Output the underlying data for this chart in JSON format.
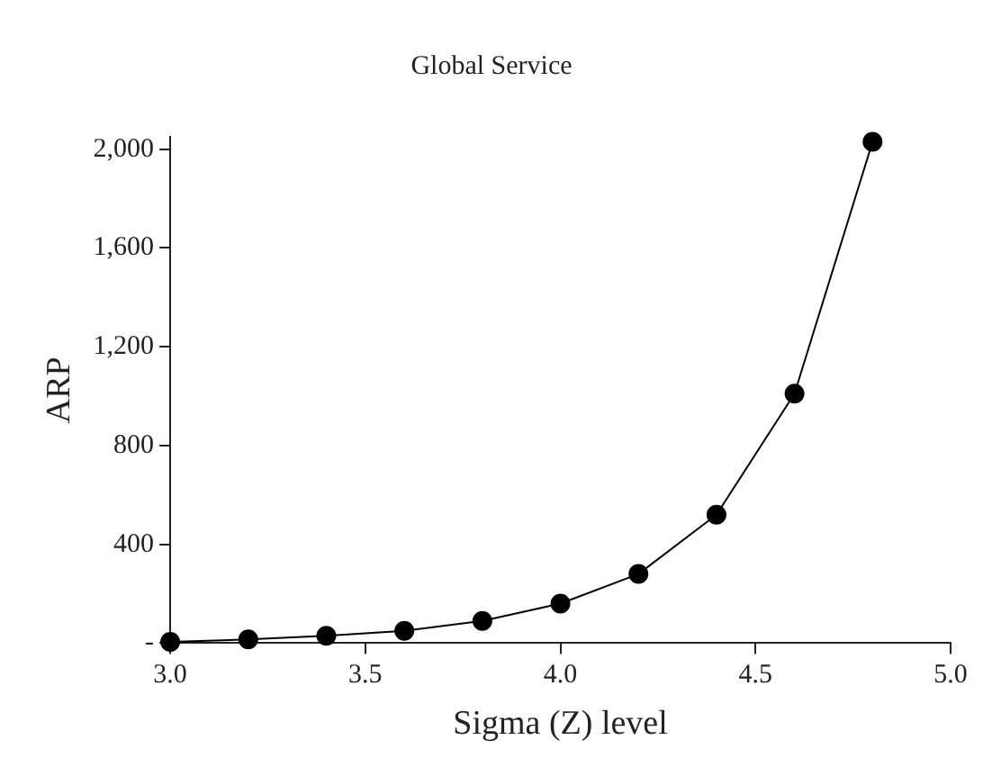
{
  "chart_data": {
    "type": "line",
    "title": "Global Service",
    "xlabel": "Sigma (Z) level",
    "ylabel": "ARP",
    "x": [
      3.0,
      3.2,
      3.4,
      3.6,
      3.8,
      4.0,
      4.2,
      4.4,
      4.6,
      4.8
    ],
    "series": [
      {
        "color": "#000000",
        "values": [
          5,
          15,
          30,
          50,
          90,
          160,
          280,
          520,
          1010,
          2030
        ]
      }
    ],
    "xlim": [
      3,
      5
    ],
    "xticks": [
      {
        "value": 3,
        "label": "3.0"
      },
      {
        "value": 3.5,
        "label": "3.5"
      },
      {
        "value": 4,
        "label": "4.0"
      },
      {
        "value": 4.5,
        "label": "4.5"
      },
      {
        "value": 5,
        "label": "5.0"
      }
    ],
    "ylim": [
      0,
      2050
    ],
    "yticks": [
      {
        "value": 0,
        "label": "-"
      },
      {
        "value": 400,
        "label": "400"
      },
      {
        "value": 800,
        "label": "800"
      },
      {
        "value": 1200,
        "label": "1,200"
      },
      {
        "value": 1600,
        "label": "1,600"
      },
      {
        "value": 2000,
        "label": "2,000"
      }
    ],
    "grid": false,
    "legend": false,
    "marker": "circle",
    "line_style": "solid"
  }
}
